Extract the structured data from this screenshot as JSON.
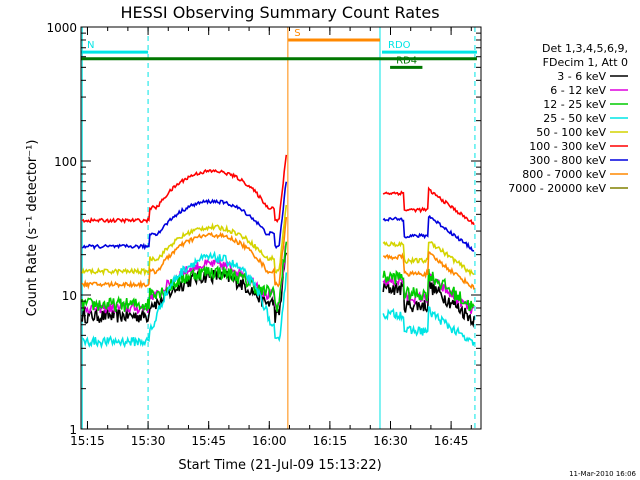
{
  "chart_data": {
    "type": "line",
    "title": "HESSI Observing Summary Count Rates",
    "xlabel": "Start Time (21-Jul-09 15:13:22)",
    "ylabel": "Count Rate (s⁻¹ detector⁻¹)",
    "yscale": "log",
    "xunit": "minutes since 15:13:22",
    "xlim": [
      0,
      99
    ],
    "ylim": [
      1,
      1000
    ],
    "x_ticks": [
      {
        "v": 1.6,
        "label": "15:15"
      },
      {
        "v": 16.6,
        "label": "15:30"
      },
      {
        "v": 31.6,
        "label": "15:45"
      },
      {
        "v": 46.6,
        "label": "16:00"
      },
      {
        "v": 61.6,
        "label": "16:15"
      },
      {
        "v": 76.6,
        "label": "16:30"
      },
      {
        "v": 91.6,
        "label": "16:45"
      }
    ],
    "y_ticks": [
      {
        "v": 1,
        "label": "1"
      },
      {
        "v": 10,
        "label": "10"
      },
      {
        "v": 100,
        "label": "100"
      },
      {
        "v": 1000,
        "label": "1000"
      }
    ],
    "legend_title": [
      "Det 1,3,4,5,6,9,",
      "FDecim 1, Att 0"
    ],
    "legend_position": "right",
    "series": [
      {
        "name": "3 - 6 keV",
        "color": "#000000",
        "level": 7,
        "peak": 14,
        "jitter": 0.12
      },
      {
        "name": "6 - 12 keV",
        "color": "#dd00dd",
        "level": 8,
        "peak": 17,
        "jitter": 0.09
      },
      {
        "name": "12 - 25 keV",
        "color": "#00cc00",
        "level": 8.5,
        "peak": 15,
        "jitter": 0.12
      },
      {
        "name": "25 - 50 keV",
        "color": "#00e5e5",
        "level": 4.5,
        "peak": 19,
        "jitter": 0.08
      },
      {
        "name": "50 - 100 keV",
        "color": "#d4d400",
        "level": 15,
        "peak": 32,
        "jitter": 0.04
      },
      {
        "name": "100 - 300 keV",
        "color": "#ff0000",
        "level": 36,
        "peak": 84,
        "jitter": 0.03
      },
      {
        "name": "300 - 800 keV",
        "color": "#0000dd",
        "level": 23,
        "peak": 50,
        "jitter": 0.03
      },
      {
        "name": "800 - 7000 keV",
        "color": "#ff8800",
        "level": 12,
        "peak": 28,
        "jitter": 0.04
      },
      {
        "name": "7000 - 20000 keV",
        "color": "#808000",
        "level": 0,
        "peak": 0,
        "jitter": 0
      }
    ],
    "annotations": [
      {
        "label": "N",
        "x_start": 0,
        "x_end": 16.6,
        "y": 650,
        "color": "#00e5e5"
      },
      {
        "label": "S",
        "x_start": 51.3,
        "x_end": 74.0,
        "y": 800,
        "color": "#ff8800"
      },
      {
        "label": "RDO",
        "x_start": 74.5,
        "x_end": 98,
        "y": 650,
        "color": "#00e5e5"
      },
      {
        "label": "RD4",
        "x_start": 76.5,
        "x_end": 84.5,
        "y": 500,
        "color": "#007700"
      },
      {
        "label": "",
        "x_start": 0,
        "x_end": 98,
        "y": 580,
        "color": "#007700"
      }
    ],
    "vlines": [
      {
        "x": 0.3,
        "color": "#00e5e5",
        "style": "solid"
      },
      {
        "x": 16.6,
        "color": "#00e5e5",
        "style": "dashed"
      },
      {
        "x": 51.2,
        "color": "#ff8800",
        "style": "solid"
      },
      {
        "x": 74.0,
        "color": "#00e5e5",
        "style": "solid"
      },
      {
        "x": 97.5,
        "color": "#00e5e5",
        "style": "dashed"
      }
    ],
    "footer": "11-Mar-2010 16:06"
  }
}
